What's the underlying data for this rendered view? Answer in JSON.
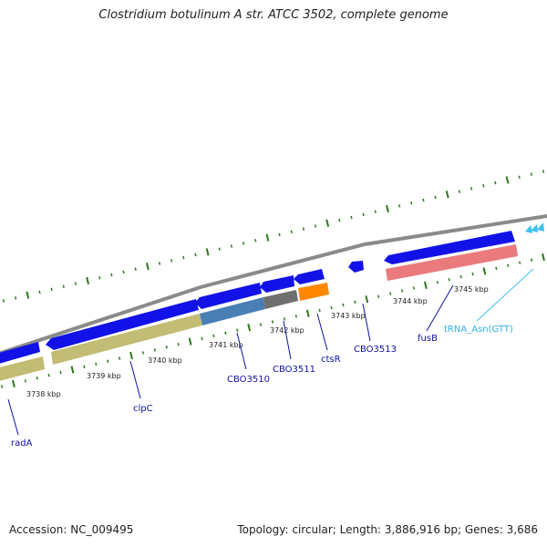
{
  "header": {
    "title": "Clostridium botulinum A str. ATCC 3502, complete genome"
  },
  "footer": {
    "accession": "Accession: NC_009495",
    "stats": "Topology: circular; Length: 3,886,916 bp; Genes: 3,686"
  },
  "map": {
    "ticks": [
      "3738 kbp",
      "3739 kbp",
      "3740 kbp",
      "3741 kbp",
      "3742 kbp",
      "3743 kbp",
      "3744 kbp",
      "3745 kbp"
    ],
    "genes": [
      "radA",
      "clpC",
      "CBO3510",
      "CBO3511",
      "ctsR",
      "CBO3513",
      "fusB",
      "tRNA_Asn(GTT)"
    ],
    "colors": {
      "cds": "#1010e0",
      "backbone": "#8a8a8a",
      "tick": "#2a7a1a",
      "cog_olive": "#c2bc74",
      "cog_steelblue": "#4a7fb5",
      "cog_gray": "#6f6f6f",
      "cog_orange": "#ff8800",
      "cog_pink": "#ea7a7c",
      "trna": "#40c0f0"
    }
  }
}
